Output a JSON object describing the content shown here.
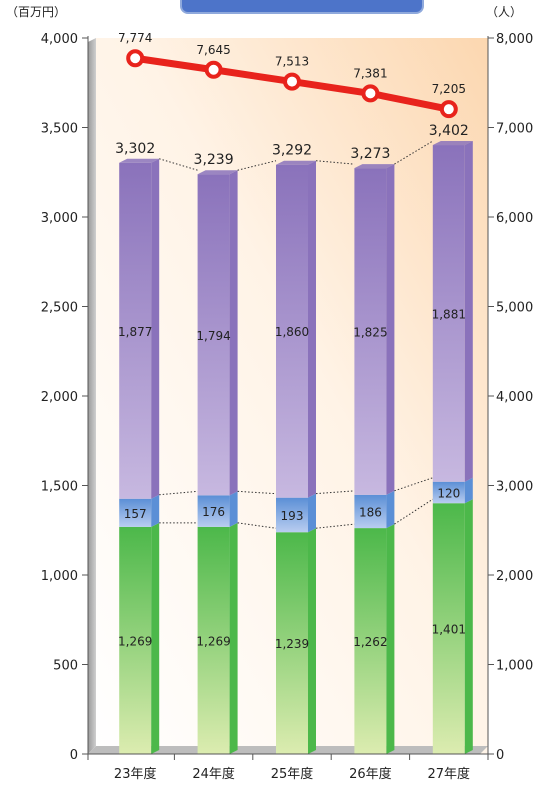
{
  "chart_data": {
    "type": "bar",
    "stacked": true,
    "categories": [
      "23年度",
      "24年度",
      "25年度",
      "26年度",
      "27年度"
    ],
    "y_left": {
      "unit": "（百万円）",
      "lim": [
        0,
        4000
      ],
      "ticks": [
        "0",
        "500",
        "1,000",
        "1,500",
        "2,000",
        "2,500",
        "3,000",
        "3,500",
        "4,000"
      ]
    },
    "y_right": {
      "unit": "（人）",
      "lim": [
        0,
        8000
      ],
      "ticks": [
        "0",
        "1,000",
        "2,000",
        "3,000",
        "4,000",
        "5,000",
        "6,000",
        "7,000",
        "8,000"
      ]
    },
    "series": [
      {
        "values": [
          1269,
          1269,
          1239,
          1262,
          1401
        ],
        "labels": [
          "1,269",
          "1,269",
          "1,239",
          "1,262",
          "1,401"
        ],
        "color": "#4cb84a"
      },
      {
        "values": [
          157,
          176,
          193,
          186,
          120
        ],
        "labels": [
          "157",
          "176",
          "193",
          "186",
          "120"
        ],
        "color": "#5b8fd6"
      },
      {
        "values": [
          1877,
          1794,
          1860,
          1825,
          1881
        ],
        "labels": [
          "1,877",
          "1,794",
          "1,860",
          "1,825",
          "1,881"
        ],
        "color": "#8a72bb"
      }
    ],
    "totals": {
      "values": [
        3302,
        3239,
        3292,
        3273,
        3402
      ],
      "labels": [
        "3,302",
        "3,239",
        "3,292",
        "3,273",
        "3,402"
      ]
    },
    "line_series": {
      "axis": "right",
      "values": [
        7774,
        7645,
        7513,
        7381,
        7205
      ],
      "labels": [
        "7,774",
        "7,645",
        "7,513",
        "7,381",
        "7,205"
      ],
      "color": "#e8231c"
    },
    "grid": false,
    "legend": "none"
  }
}
